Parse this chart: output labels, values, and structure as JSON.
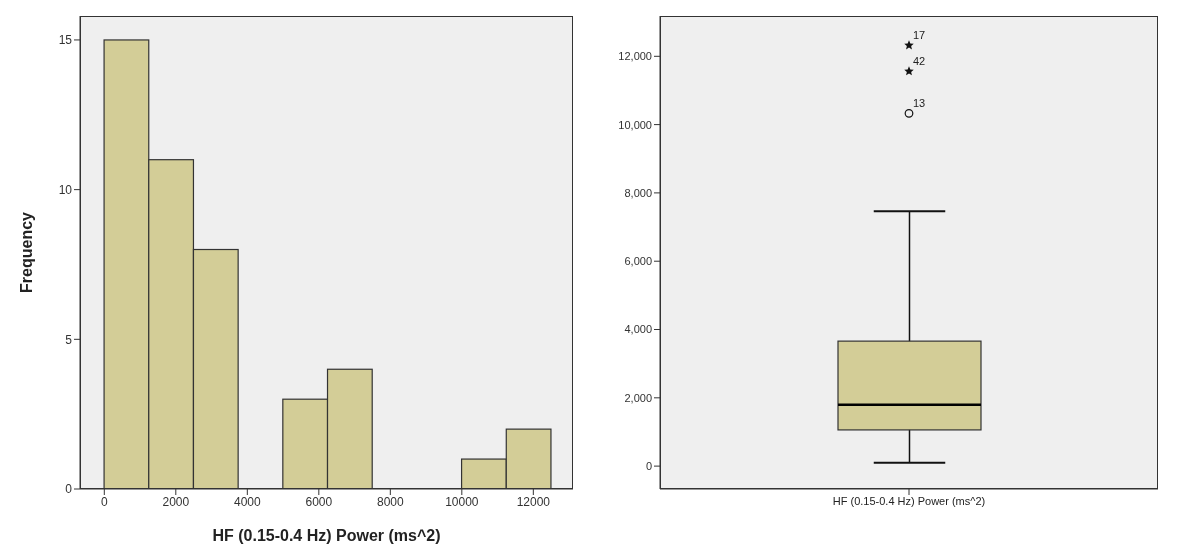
{
  "chart_data": [
    {
      "type": "histogram",
      "xlabel": "HF (0.15-0.4 Hz) Power (ms^2)",
      "ylabel": "Frequency",
      "bins": [
        0,
        1250,
        2500,
        3750,
        5000,
        6250,
        7500,
        8750,
        10000,
        11250,
        12500
      ],
      "values": [
        15,
        11,
        8,
        0,
        3,
        4,
        0,
        0,
        1,
        2
      ],
      "color": "#d3cd97",
      "xlim": [
        -680,
        13110
      ],
      "xticks": [
        0,
        2000,
        4000,
        6000,
        8000,
        10000,
        12000
      ],
      "ylim": [
        0,
        15.8
      ],
      "yticks": [
        0,
        5,
        10,
        15
      ]
    },
    {
      "type": "box",
      "categories": [
        "HF (0.15-0.4 Hz) Power (ms^2)"
      ],
      "boxes": [
        {
          "low": 100,
          "q1": 1060,
          "median": 1800,
          "q3": 3660,
          "high": 7460,
          "outliers": [
            12320,
            11560,
            10330
          ]
        }
      ],
      "color": "#d3cd97",
      "ylim": [
        -670,
        13180
      ],
      "yticks": [
        {
          "value": 0,
          "label": "0"
        },
        {
          "value": 2000,
          "label": "2,000"
        },
        {
          "value": 4000,
          "label": "4,000"
        },
        {
          "value": 6000,
          "label": "6,000"
        },
        {
          "value": 8000,
          "label": "8,000"
        },
        {
          "value": 10000,
          "label": "10,000"
        },
        {
          "value": 12000,
          "label": "12,000"
        }
      ],
      "annotations": [
        "17",
        "42",
        "13"
      ]
    }
  ]
}
